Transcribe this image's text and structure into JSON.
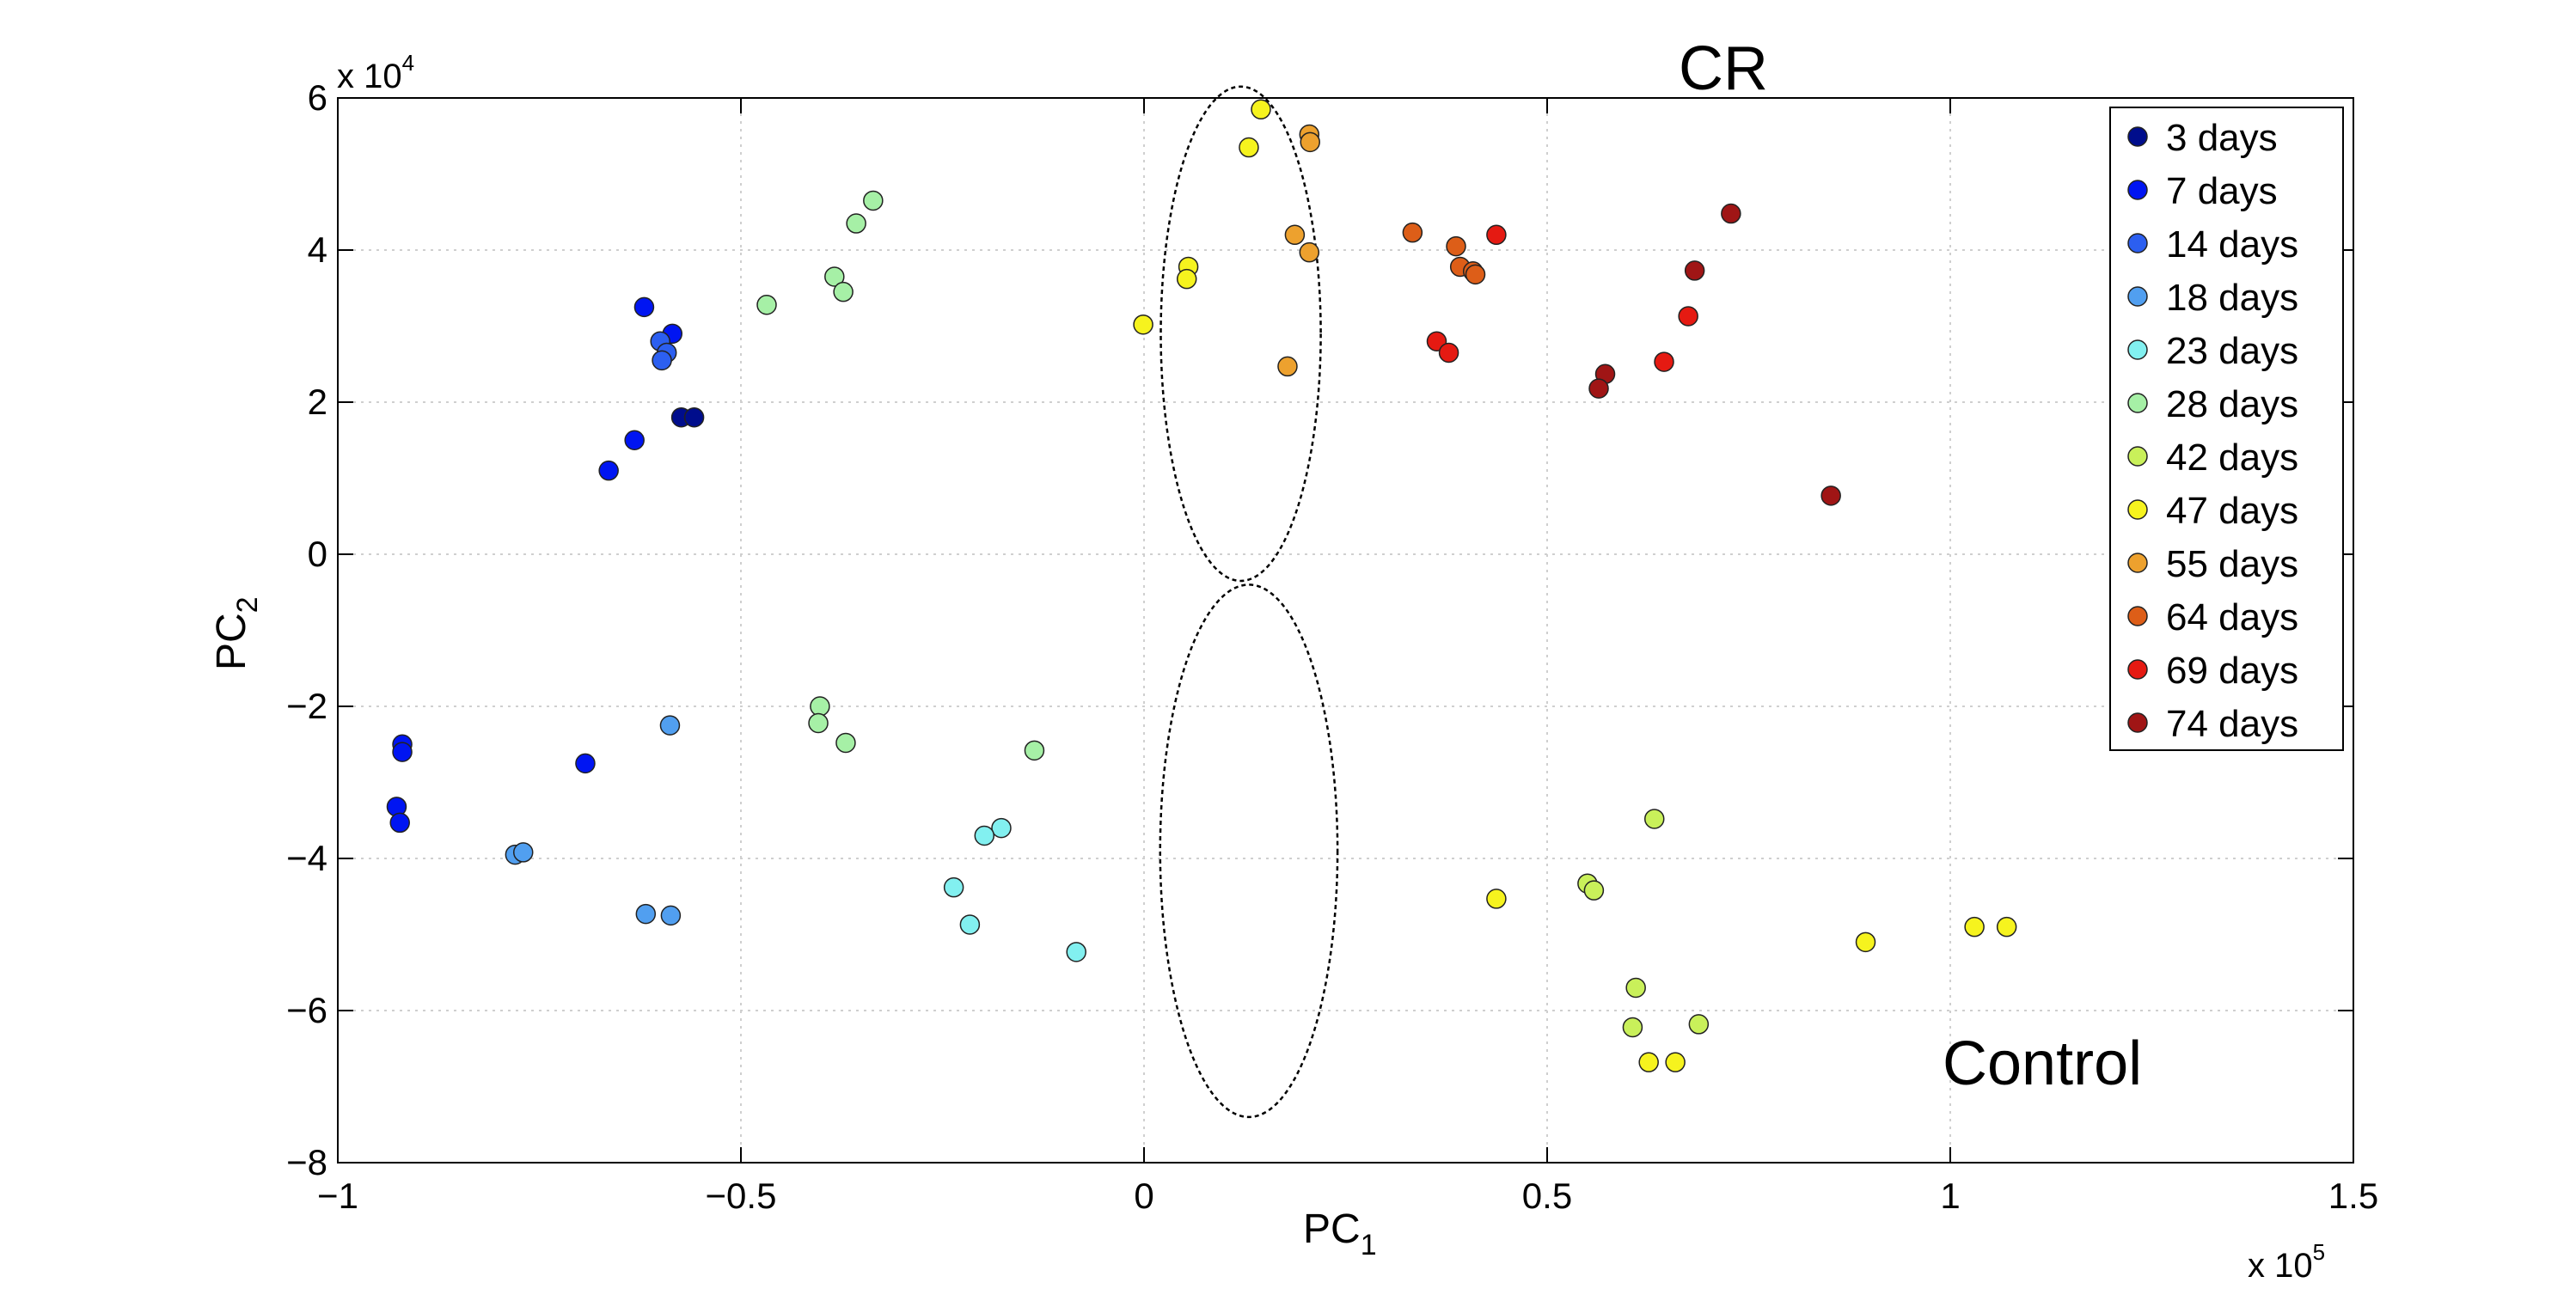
{
  "chart_data": {
    "type": "scatter",
    "xlabel_main": "PC",
    "xlabel_sub": "1",
    "ylabel_main": "PC",
    "ylabel_sub": "2",
    "x_exponent_prefix": "x 10",
    "x_exponent_power": "5",
    "y_exponent_prefix": "x 10",
    "y_exponent_power": "4",
    "xlim": [
      -1,
      1.5
    ],
    "ylim": [
      -8,
      6
    ],
    "xticks": [
      -1,
      -0.5,
      0,
      0.5,
      1,
      1.5
    ],
    "xtick_labels": [
      "−1",
      "−0.5",
      "0",
      "0.5",
      "1",
      "1.5"
    ],
    "yticks": [
      -8,
      -6,
      -4,
      -2,
      0,
      2,
      4,
      6
    ],
    "ytick_labels": [
      "−8",
      "−6",
      "−4",
      "−2",
      "0",
      "2",
      "4",
      "6"
    ],
    "grid": true,
    "legend_position": "top-right",
    "groups": [
      {
        "label": "CR",
        "ellipse": {
          "cx": 0.12,
          "cy": 2.9,
          "rx": 0.992,
          "ry": 3.25
        }
      },
      {
        "label": "Control",
        "ellipse": {
          "cx": 0.13,
          "cy": -3.9,
          "rx": 1.1,
          "ry": 3.5
        }
      }
    ],
    "series": [
      {
        "name": "3 days",
        "color": "#000d8c",
        "points": [
          [
            -0.574,
            1.8
          ],
          [
            -0.558,
            1.8
          ]
        ]
      },
      {
        "name": "7 days",
        "color": "#0015f2",
        "points": [
          [
            -0.62,
            3.25
          ],
          [
            -0.585,
            2.9
          ],
          [
            -0.632,
            1.5
          ],
          [
            -0.664,
            1.1
          ],
          [
            -0.92,
            -2.5
          ],
          [
            -0.92,
            -2.6
          ],
          [
            -0.693,
            -2.75
          ],
          [
            -0.927,
            -3.32
          ],
          [
            -0.923,
            -3.53
          ]
        ]
      },
      {
        "name": "14 days",
        "color": "#2c5ff0",
        "points": [
          [
            -0.6,
            2.8
          ],
          [
            -0.592,
            2.65
          ],
          [
            -0.598,
            2.55
          ]
        ]
      },
      {
        "name": "18 days",
        "color": "#519ff0",
        "points": [
          [
            -0.588,
            -2.25
          ],
          [
            -0.78,
            -3.95
          ],
          [
            -0.77,
            -3.92
          ],
          [
            -0.618,
            -4.73
          ],
          [
            -0.587,
            -4.75
          ]
        ]
      },
      {
        "name": "23 days",
        "color": "#82f0f0",
        "points": [
          [
            -0.177,
            -3.6
          ],
          [
            -0.198,
            -3.7
          ],
          [
            -0.236,
            -4.38
          ],
          [
            -0.216,
            -4.87
          ],
          [
            -0.084,
            -5.23
          ]
        ]
      },
      {
        "name": "28 days",
        "color": "#a6f0a6",
        "points": [
          [
            -0.468,
            3.28
          ],
          [
            -0.384,
            3.65
          ],
          [
            -0.373,
            3.45
          ],
          [
            -0.357,
            4.35
          ],
          [
            -0.336,
            4.65
          ],
          [
            -0.402,
            -2.0
          ],
          [
            -0.404,
            -2.22
          ],
          [
            -0.37,
            -2.48
          ],
          [
            -0.136,
            -2.58
          ]
        ]
      },
      {
        "name": "42 days",
        "color": "#c9f05a",
        "points": [
          [
            0.633,
            -3.48
          ],
          [
            0.55,
            -4.33
          ],
          [
            0.558,
            -4.42
          ],
          [
            0.61,
            -5.7
          ],
          [
            0.606,
            -6.22
          ],
          [
            0.688,
            -6.18
          ]
        ]
      },
      {
        "name": "47 days",
        "color": "#f6f31e",
        "points": [
          [
            0.145,
            5.85
          ],
          [
            0.13,
            5.35
          ],
          [
            0.055,
            3.78
          ],
          [
            0.053,
            3.62
          ],
          [
            -0.001,
            3.02
          ],
          [
            0.437,
            -4.53
          ],
          [
            0.895,
            -5.1
          ],
          [
            1.03,
            -4.9
          ],
          [
            1.07,
            -4.9
          ],
          [
            0.626,
            -6.68
          ],
          [
            0.659,
            -6.68
          ]
        ]
      },
      {
        "name": "55 days",
        "color": "#eda12e",
        "points": [
          [
            0.205,
            5.52
          ],
          [
            0.206,
            5.42
          ],
          [
            0.187,
            4.2
          ],
          [
            0.205,
            3.97
          ],
          [
            0.178,
            2.47
          ]
        ]
      },
      {
        "name": "64 days",
        "color": "#dd5e18",
        "points": [
          [
            0.333,
            4.23
          ],
          [
            0.387,
            4.05
          ],
          [
            0.392,
            3.78
          ],
          [
            0.408,
            3.72
          ],
          [
            0.411,
            3.68
          ]
        ]
      },
      {
        "name": "69 days",
        "color": "#e51a12",
        "points": [
          [
            0.437,
            4.2
          ],
          [
            0.363,
            2.8
          ],
          [
            0.378,
            2.65
          ],
          [
            0.645,
            2.53
          ],
          [
            0.675,
            3.13
          ]
        ]
      },
      {
        "name": "74 days",
        "color": "#a01515",
        "points": [
          [
            0.728,
            4.48
          ],
          [
            0.683,
            3.73
          ],
          [
            0.572,
            2.37
          ],
          [
            0.564,
            2.18
          ],
          [
            0.852,
            0.77
          ]
        ]
      }
    ]
  }
}
